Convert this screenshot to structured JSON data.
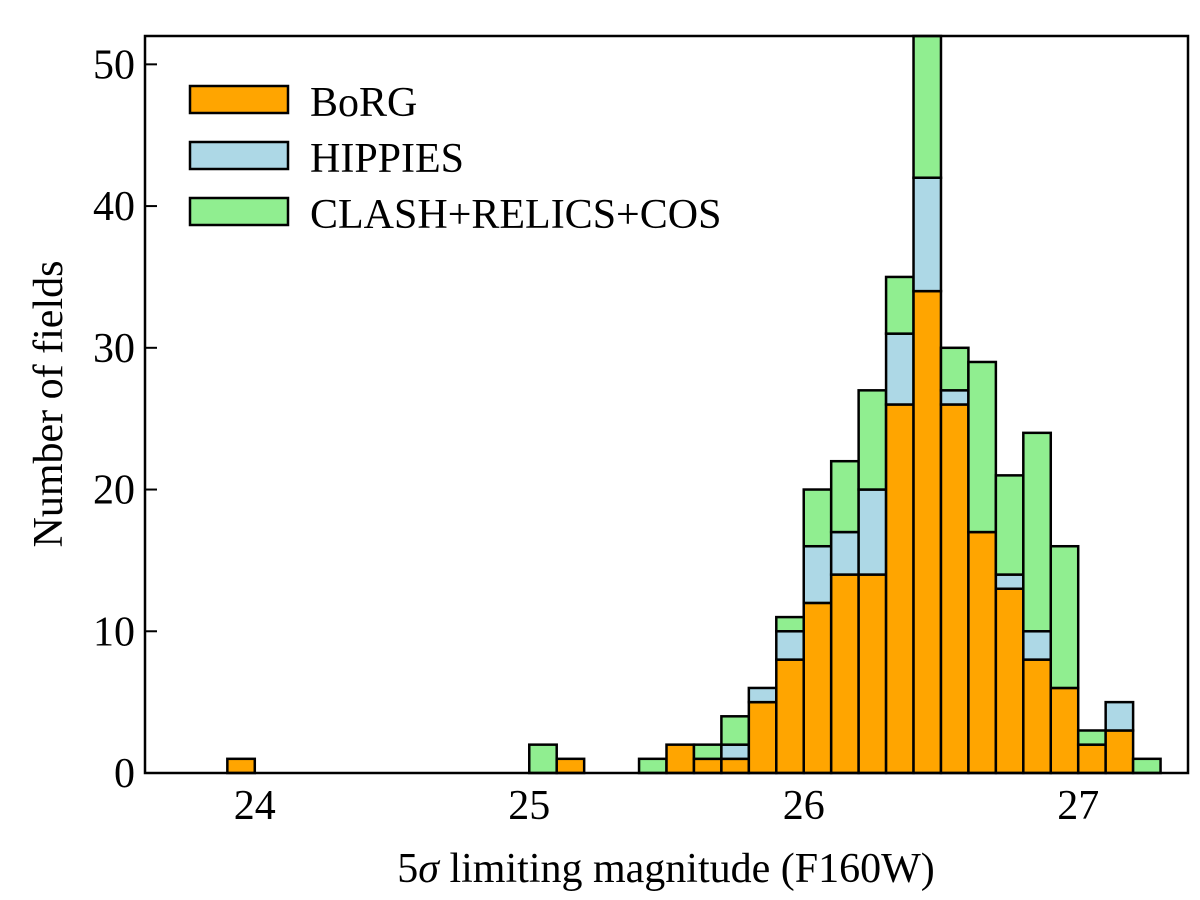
{
  "chart_data": {
    "type": "bar",
    "stacked": true,
    "bin_width": 0.1,
    "xlabel_prefix": "5",
    "xlabel_symbol": "σ",
    "xlabel_suffix": " limiting magnitude (F160W)",
    "ylabel": "Number of fields",
    "xlim": [
      23.6,
      27.4
    ],
    "ylim": [
      0,
      52
    ],
    "xticks": [
      24,
      25,
      26,
      27
    ],
    "yticks": [
      0,
      10,
      20,
      30,
      40,
      50
    ],
    "legend_position": "top-left",
    "series": [
      {
        "name": "BoRG",
        "color": "#FFA500"
      },
      {
        "name": "HIPPIES",
        "color": "#ADD8E6"
      },
      {
        "name": "CLASH+RELICS+COS",
        "color": "#90EE90"
      }
    ],
    "bins": [
      {
        "x0": 23.9,
        "values": [
          1,
          0,
          0
        ]
      },
      {
        "x0": 25.0,
        "values": [
          0,
          0,
          2
        ]
      },
      {
        "x0": 25.1,
        "values": [
          1,
          0,
          0
        ]
      },
      {
        "x0": 25.4,
        "values": [
          0,
          0,
          1
        ]
      },
      {
        "x0": 25.5,
        "values": [
          2,
          0,
          0
        ]
      },
      {
        "x0": 25.6,
        "values": [
          1,
          0,
          1
        ]
      },
      {
        "x0": 25.7,
        "values": [
          1,
          1,
          2
        ]
      },
      {
        "x0": 25.8,
        "values": [
          5,
          1,
          0
        ]
      },
      {
        "x0": 25.9,
        "values": [
          8,
          2,
          1
        ]
      },
      {
        "x0": 26.0,
        "values": [
          12,
          4,
          4
        ]
      },
      {
        "x0": 26.1,
        "values": [
          14,
          3,
          5
        ]
      },
      {
        "x0": 26.2,
        "values": [
          14,
          6,
          7
        ]
      },
      {
        "x0": 26.3,
        "values": [
          26,
          5,
          4
        ]
      },
      {
        "x0": 26.4,
        "values": [
          34,
          8,
          10
        ]
      },
      {
        "x0": 26.5,
        "values": [
          26,
          1,
          3
        ]
      },
      {
        "x0": 26.6,
        "values": [
          17,
          0,
          12
        ]
      },
      {
        "x0": 26.7,
        "values": [
          13,
          1,
          7
        ]
      },
      {
        "x0": 26.8,
        "values": [
          8,
          2,
          14
        ]
      },
      {
        "x0": 26.9,
        "values": [
          6,
          0,
          10
        ]
      },
      {
        "x0": 27.0,
        "values": [
          2,
          0,
          1
        ]
      },
      {
        "x0": 27.1,
        "values": [
          3,
          2,
          0
        ]
      },
      {
        "x0": 27.2,
        "values": [
          0,
          0,
          1
        ]
      }
    ]
  }
}
